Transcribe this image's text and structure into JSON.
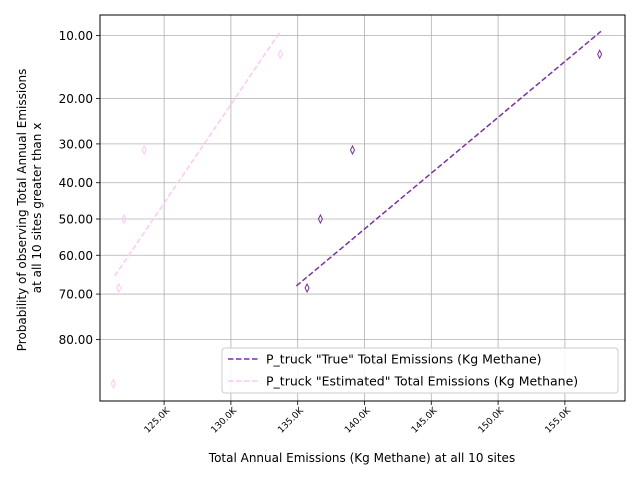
{
  "chart_data": {
    "type": "scatter",
    "title": "",
    "xlabel": "Total Annual Emissions (Kg Methane) at all 10 sites",
    "ylabel_lines": [
      "Probability of observing Total Annual Emissions",
      "at all 10 sites greater than x"
    ],
    "xlim": [
      120200,
      159500
    ],
    "x_ticks": [
      {
        "value": 125000,
        "label": "125.0K"
      },
      {
        "value": 130000,
        "label": "130.0K"
      },
      {
        "value": 135000,
        "label": "135.0K"
      },
      {
        "value": 140000,
        "label": "140.0K"
      },
      {
        "value": 145000,
        "label": "145.0K"
      },
      {
        "value": 150000,
        "label": "150.0K"
      },
      {
        "value": 155000,
        "label": "155.0K"
      }
    ],
    "y_axis_note": "probability scale (normal quantile), inverted: 10 at top, 80 near bottom",
    "y_ticks": [
      {
        "value": 10,
        "label": "10.00"
      },
      {
        "value": 20,
        "label": "20.00"
      },
      {
        "value": 30,
        "label": "30.00"
      },
      {
        "value": 40,
        "label": "40.00"
      },
      {
        "value": 50,
        "label": "50.00"
      },
      {
        "value": 60,
        "label": "60.00"
      },
      {
        "value": 70,
        "label": "70.00"
      },
      {
        "value": 80,
        "label": "80.00"
      }
    ],
    "grid": true,
    "legend_position": "bottom-right",
    "series": [
      {
        "name": "P_truck \"True\" Total Emissions (Kg Methane)",
        "color": "#7b2fa8",
        "marker_points": [
          {
            "x": 135700,
            "y": 68.5
          },
          {
            "x": 136700,
            "y": 50.0
          },
          {
            "x": 139100,
            "y": 31.5
          },
          {
            "x": 157600,
            "y": 12.5
          }
        ],
        "fit_line": [
          {
            "x": 134900,
            "y": 68.0
          },
          {
            "x": 157700,
            "y": 9.5
          }
        ]
      },
      {
        "name": "P_truck \"Estimated\" Total Emissions (Kg Methane)",
        "color": "#ffc8f5",
        "marker_points": [
          {
            "x": 121200,
            "y": 87.5
          },
          {
            "x": 121600,
            "y": 68.5
          },
          {
            "x": 122000,
            "y": 50.0
          },
          {
            "x": 123500,
            "y": 31.5
          },
          {
            "x": 133700,
            "y": 12.5
          }
        ],
        "fit_line": [
          {
            "x": 121300,
            "y": 65.5
          },
          {
            "x": 133700,
            "y": 9.5
          }
        ]
      }
    ]
  }
}
